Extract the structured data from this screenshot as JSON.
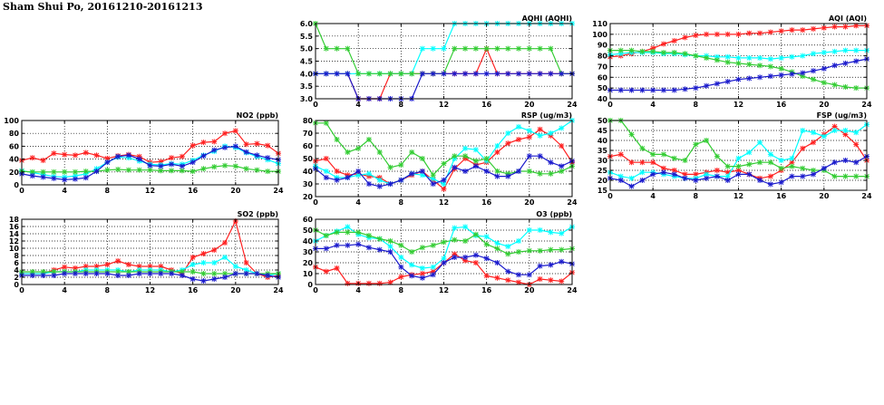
{
  "page_title": "Sham Shui Po, 20161210-20161213",
  "series_colors": {
    "red": "#ff2020",
    "cyan": "#00ffff",
    "green": "#33cc33",
    "blue": "#1a1acc"
  },
  "chart_data": [
    {
      "id": "no2",
      "type": "line",
      "title": "NO2 (ppb)",
      "xlim": [
        0,
        24
      ],
      "ylim": [
        0,
        100
      ],
      "xticks": [
        0,
        4,
        8,
        12,
        16,
        20,
        24
      ],
      "yticks": [
        0,
        20,
        40,
        60,
        80,
        100
      ],
      "grid": true,
      "x": [
        0,
        1,
        2,
        3,
        4,
        5,
        6,
        7,
        8,
        9,
        10,
        11,
        12,
        13,
        14,
        15,
        16,
        17,
        18,
        19,
        20,
        21,
        22,
        23,
        24
      ],
      "series": [
        {
          "color": "red",
          "values": [
            38,
            42,
            38,
            49,
            47,
            46,
            50,
            46,
            41,
            45,
            47,
            44,
            35,
            36,
            42,
            44,
            61,
            66,
            67,
            80,
            84,
            63,
            64,
            61,
            49
          ]
        },
        {
          "color": "cyan",
          "values": [
            22,
            19,
            16,
            13,
            12,
            14,
            17,
            25,
            35,
            43,
            42,
            37,
            32,
            31,
            33,
            32,
            38,
            46,
            52,
            60,
            58,
            50,
            44,
            39,
            33
          ]
        },
        {
          "color": "green",
          "values": [
            21,
            20,
            20,
            20,
            20,
            20,
            21,
            21,
            23,
            24,
            23,
            23,
            23,
            22,
            22,
            22,
            21,
            25,
            28,
            30,
            29,
            25,
            23,
            21,
            21
          ]
        },
        {
          "color": "blue",
          "values": [
            17,
            14,
            12,
            10,
            8,
            9,
            11,
            21,
            35,
            44,
            46,
            40,
            30,
            29,
            32,
            29,
            35,
            45,
            54,
            58,
            60,
            51,
            46,
            42,
            39
          ]
        }
      ]
    },
    {
      "id": "so2",
      "type": "line",
      "title": "SO2 (ppb)",
      "xlim": [
        0,
        24
      ],
      "ylim": [
        0,
        18
      ],
      "xticks": [
        0,
        4,
        8,
        12,
        16,
        20,
        24
      ],
      "yticks": [
        0,
        2,
        4,
        6,
        8,
        10,
        12,
        14,
        16,
        18
      ],
      "grid": true,
      "x": [
        0,
        1,
        2,
        3,
        4,
        5,
        6,
        7,
        8,
        9,
        10,
        11,
        12,
        13,
        14,
        15,
        16,
        17,
        18,
        19,
        20,
        21,
        22,
        23,
        24
      ],
      "series": [
        {
          "color": "red",
          "values": [
            3,
            3,
            3,
            4,
            4.8,
            4.5,
            5,
            5,
            5.5,
            6.5,
            5.5,
            5,
            5,
            5,
            4,
            3,
            7.5,
            8.5,
            9.5,
            11.5,
            17.5,
            6,
            3,
            2,
            2.5
          ]
        },
        {
          "color": "cyan",
          "values": [
            3,
            3,
            3,
            3.5,
            3.5,
            3.5,
            4,
            4,
            4,
            4,
            3.5,
            4,
            4,
            4,
            3.5,
            4,
            5.5,
            6,
            6,
            7.5,
            5,
            4,
            3,
            2.5,
            3
          ]
        },
        {
          "color": "green",
          "values": [
            3.5,
            3.5,
            3.5,
            3.5,
            3.5,
            3.5,
            3.5,
            3.5,
            3.5,
            3.5,
            3.5,
            3.5,
            3.5,
            3.5,
            3.5,
            3.5,
            3.5,
            3,
            3,
            3,
            3,
            3,
            3,
            3,
            3
          ]
        },
        {
          "color": "blue",
          "values": [
            2.5,
            2.5,
            2.5,
            2.5,
            3,
            3,
            3,
            3,
            3,
            2.5,
            2.5,
            3,
            3,
            3,
            3,
            2.5,
            1.5,
            1,
            1.5,
            2,
            3,
            3,
            3,
            2.5,
            2
          ]
        }
      ]
    },
    {
      "id": "aqhi",
      "type": "line",
      "title": "AQHI (AQHI)",
      "xlim": [
        0,
        24
      ],
      "ylim": [
        3.0,
        6.0
      ],
      "xticks": [
        0,
        4,
        8,
        12,
        16,
        20,
        24
      ],
      "yticks": [
        "3.0",
        "3.5",
        "4.0",
        "4.5",
        "5.0",
        "5.5",
        "6.0"
      ],
      "grid": true,
      "x": [
        0,
        1,
        2,
        3,
        4,
        5,
        6,
        7,
        8,
        9,
        10,
        11,
        12,
        13,
        14,
        15,
        16,
        17,
        18,
        19,
        20,
        21,
        22,
        23,
        24
      ],
      "series": [
        {
          "color": "red",
          "values": [
            4,
            4,
            4,
            4,
            3,
            3,
            3,
            4,
            4,
            4,
            4,
            4,
            4,
            4,
            4,
            4,
            5,
            4,
            4,
            4,
            4,
            4,
            4,
            4,
            4
          ]
        },
        {
          "color": "cyan",
          "values": [
            4,
            4,
            4,
            4,
            4,
            4,
            4,
            4,
            4,
            4,
            5,
            5,
            5,
            6,
            6,
            6,
            6,
            6,
            6,
            6,
            6,
            6,
            6,
            6,
            6
          ]
        },
        {
          "color": "green",
          "values": [
            6,
            5,
            5,
            5,
            4,
            4,
            4,
            4,
            4,
            4,
            4,
            4,
            4,
            5,
            5,
            5,
            5,
            5,
            5,
            5,
            5,
            5,
            5,
            4,
            4
          ]
        },
        {
          "color": "blue",
          "values": [
            4,
            4,
            4,
            4,
            3,
            3,
            3,
            3,
            3,
            3,
            4,
            4,
            4,
            4,
            4,
            4,
            4,
            4,
            4,
            4,
            4,
            4,
            4,
            4,
            4
          ]
        }
      ]
    },
    {
      "id": "rsp",
      "type": "line",
      "title": "RSP (ug/m3)",
      "xlim": [
        0,
        24
      ],
      "ylim": [
        20,
        80
      ],
      "xticks": [
        0,
        4,
        8,
        12,
        16,
        20,
        24
      ],
      "yticks": [
        20,
        30,
        40,
        50,
        60,
        70,
        80
      ],
      "grid": true,
      "x": [
        0,
        1,
        2,
        3,
        4,
        5,
        6,
        7,
        8,
        9,
        10,
        11,
        12,
        13,
        14,
        15,
        16,
        17,
        18,
        19,
        20,
        21,
        22,
        23,
        24
      ],
      "series": [
        {
          "color": "red",
          "values": [
            48,
            50,
            40,
            37,
            38,
            36,
            35,
            30,
            33,
            37,
            40,
            33,
            26,
            42,
            50,
            45,
            47,
            55,
            62,
            65,
            67,
            73,
            68,
            60,
            47
          ]
        },
        {
          "color": "cyan",
          "values": [
            44,
            40,
            35,
            35,
            37,
            38,
            33,
            30,
            33,
            38,
            37,
            34,
            30,
            50,
            58,
            57,
            48,
            60,
            70,
            75,
            72,
            68,
            70,
            74,
            80
          ]
        },
        {
          "color": "green",
          "values": [
            78,
            78,
            65,
            55,
            58,
            65,
            55,
            43,
            45,
            55,
            50,
            37,
            46,
            52,
            52,
            48,
            50,
            40,
            38,
            40,
            40,
            38,
            38,
            40,
            44
          ]
        },
        {
          "color": "blue",
          "values": [
            42,
            35,
            33,
            35,
            40,
            30,
            28,
            30,
            33,
            38,
            40,
            30,
            33,
            43,
            40,
            44,
            40,
            36,
            36,
            40,
            52,
            52,
            47,
            44,
            48
          ]
        }
      ]
    },
    {
      "id": "o3",
      "type": "line",
      "title": "O3 (ppb)",
      "xlim": [
        0,
        24
      ],
      "ylim": [
        0,
        60
      ],
      "xticks": [
        0,
        4,
        8,
        12,
        16,
        20,
        24
      ],
      "yticks": [
        0,
        10,
        20,
        30,
        40,
        50,
        60
      ],
      "grid": true,
      "x": [
        0,
        1,
        2,
        3,
        4,
        5,
        6,
        7,
        8,
        9,
        10,
        11,
        12,
        13,
        14,
        15,
        16,
        17,
        18,
        19,
        20,
        21,
        22,
        23,
        24
      ],
      "series": [
        {
          "color": "red",
          "values": [
            16,
            12,
            15,
            1,
            1,
            1,
            1,
            2,
            7,
            9,
            10,
            12,
            20,
            28,
            22,
            20,
            8,
            6,
            4,
            2,
            0,
            5,
            4,
            3,
            11
          ]
        },
        {
          "color": "cyan",
          "values": [
            40,
            45,
            49,
            53,
            46,
            43,
            42,
            35,
            25,
            18,
            15,
            16,
            24,
            52,
            53,
            45,
            44,
            38,
            35,
            40,
            50,
            50,
            48,
            47,
            53
          ]
        },
        {
          "color": "green",
          "values": [
            50,
            45,
            48,
            48,
            48,
            45,
            42,
            40,
            36,
            30,
            34,
            36,
            39,
            41,
            40,
            46,
            37,
            33,
            28,
            30,
            31,
            31,
            32,
            32,
            33
          ]
        },
        {
          "color": "blue",
          "values": [
            33,
            33,
            36,
            36,
            37,
            34,
            32,
            30,
            16,
            8,
            6,
            9,
            20,
            25,
            25,
            27,
            24,
            20,
            12,
            9,
            9,
            17,
            18,
            21,
            19
          ]
        }
      ]
    },
    {
      "id": "aqi",
      "type": "line",
      "title": "AQI (AQI)",
      "xlim": [
        0,
        24
      ],
      "ylim": [
        40,
        110
      ],
      "xticks": [
        0,
        4,
        8,
        12,
        16,
        20,
        24
      ],
      "yticks": [
        40,
        50,
        60,
        70,
        80,
        90,
        100,
        110
      ],
      "grid": true,
      "x": [
        0,
        1,
        2,
        3,
        4,
        5,
        6,
        7,
        8,
        9,
        10,
        11,
        12,
        13,
        14,
        15,
        16,
        17,
        18,
        19,
        20,
        21,
        22,
        23,
        24
      ],
      "series": [
        {
          "color": "red",
          "values": [
            79,
            80,
            82,
            84,
            87,
            91,
            94,
            97,
            99,
            100,
            100,
            100,
            100,
            101,
            101,
            102,
            103,
            104,
            104,
            105,
            106,
            107,
            107,
            108,
            108
          ]
        },
        {
          "color": "cyan",
          "values": [
            81,
            82,
            83,
            83,
            83,
            82,
            82,
            81,
            80,
            80,
            79,
            79,
            78,
            78,
            78,
            77,
            78,
            79,
            80,
            82,
            83,
            84,
            85,
            85,
            85
          ]
        },
        {
          "color": "green",
          "values": [
            85,
            85,
            85,
            84,
            84,
            83,
            83,
            82,
            80,
            78,
            76,
            74,
            73,
            72,
            71,
            70,
            68,
            65,
            61,
            58,
            55,
            53,
            51,
            50,
            50
          ]
        },
        {
          "color": "blue",
          "values": [
            48,
            48,
            48,
            48,
            48,
            48,
            48,
            49,
            50,
            52,
            54,
            56,
            58,
            59,
            60,
            61,
            62,
            63,
            64,
            66,
            68,
            71,
            73,
            75,
            77
          ]
        }
      ]
    },
    {
      "id": "fsp",
      "type": "line",
      "title": "FSP (ug/m3)",
      "xlim": [
        0,
        24
      ],
      "ylim": [
        15,
        50
      ],
      "xticks": [
        0,
        4,
        8,
        12,
        16,
        20,
        24
      ],
      "yticks": [
        15,
        20,
        25,
        30,
        35,
        40,
        45,
        50
      ],
      "grid": true,
      "x": [
        0,
        1,
        2,
        3,
        4,
        5,
        6,
        7,
        8,
        9,
        10,
        11,
        12,
        13,
        14,
        15,
        16,
        17,
        18,
        19,
        20,
        21,
        22,
        23,
        24
      ],
      "series": [
        {
          "color": "red",
          "values": [
            32,
            33,
            29,
            29,
            29,
            26,
            25,
            23,
            23,
            24,
            25,
            24,
            25,
            23,
            21,
            22,
            25,
            29,
            36,
            39,
            43,
            47,
            43,
            38,
            30
          ]
        },
        {
          "color": "cyan",
          "values": [
            24,
            22,
            21,
            24,
            24,
            23,
            22,
            21,
            21,
            23,
            22,
            22,
            31,
            34,
            39,
            33,
            30,
            31,
            45,
            44,
            42,
            45,
            45,
            44,
            48
          ]
        },
        {
          "color": "green",
          "values": [
            50,
            50,
            43,
            36,
            33,
            33,
            31,
            30,
            38,
            40,
            32,
            27,
            27,
            28,
            29,
            29,
            26,
            27,
            26,
            25,
            25,
            22,
            22,
            22,
            22
          ]
        },
        {
          "color": "blue",
          "values": [
            21,
            20,
            17,
            20,
            23,
            24,
            23,
            21,
            20,
            21,
            22,
            20,
            23,
            23,
            20,
            18,
            19,
            22,
            22,
            23,
            26,
            29,
            30,
            29,
            32
          ]
        }
      ]
    }
  ]
}
